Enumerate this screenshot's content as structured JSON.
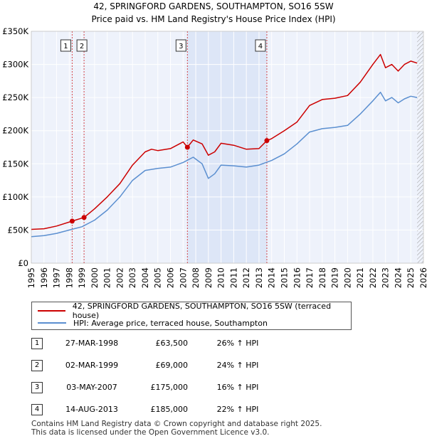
{
  "header": {
    "title_line1": "42, SPRINGFORD GARDENS, SOUTHAMPTON, SO16 5SW",
    "title_line2": "Price paid vs. HM Land Registry's House Price Index (HPI)"
  },
  "chart_data": {
    "type": "line",
    "title": "42, SPRINGFORD GARDENS, SOUTHAMPTON, SO16 5SW — Price paid vs. HM Land Registry's House Price Index (HPI)",
    "xlabel": "",
    "ylabel": "",
    "xlim": [
      1995,
      2026
    ],
    "ylim": [
      0,
      350000
    ],
    "y_ticks": [
      0,
      50000,
      100000,
      150000,
      200000,
      250000,
      300000,
      350000
    ],
    "y_tick_labels": [
      "£0",
      "£50K",
      "£100K",
      "£150K",
      "£200K",
      "£250K",
      "£300K",
      "£350K"
    ],
    "x_ticks": [
      1995,
      1996,
      1997,
      1998,
      1999,
      2000,
      2001,
      2002,
      2003,
      2004,
      2005,
      2006,
      2007,
      2008,
      2009,
      2010,
      2011,
      2012,
      2013,
      2014,
      2015,
      2016,
      2017,
      2018,
      2019,
      2020,
      2021,
      2022,
      2023,
      2024,
      2025,
      2026
    ],
    "grid": true,
    "shaded_range": [
      2007.34,
      2013.62
    ],
    "hatched_from": 2025.5,
    "series": [
      {
        "name": "42, SPRINGFORD GARDENS, SOUTHAMPTON, SO16 5SW (terraced house)",
        "color": "#cc0000",
        "points": [
          [
            1995,
            51000
          ],
          [
            1996,
            52000
          ],
          [
            1997,
            56000
          ],
          [
            1998.23,
            63500
          ],
          [
            1999.17,
            69000
          ],
          [
            2000,
            82000
          ],
          [
            2001,
            100000
          ],
          [
            2002,
            120000
          ],
          [
            2003,
            148000
          ],
          [
            2004,
            168000
          ],
          [
            2004.5,
            172000
          ],
          [
            2005,
            170000
          ],
          [
            2006,
            173000
          ],
          [
            2007,
            183000
          ],
          [
            2007.34,
            175000
          ],
          [
            2007.8,
            186000
          ],
          [
            2008.5,
            180000
          ],
          [
            2009.0,
            163000
          ],
          [
            2009.5,
            168000
          ],
          [
            2010,
            181000
          ],
          [
            2011,
            178000
          ],
          [
            2012,
            172000
          ],
          [
            2013,
            173000
          ],
          [
            2013.62,
            185000
          ],
          [
            2014,
            188000
          ],
          [
            2015,
            200000
          ],
          [
            2016,
            213000
          ],
          [
            2017,
            238000
          ],
          [
            2018,
            247000
          ],
          [
            2019,
            249000
          ],
          [
            2020,
            253000
          ],
          [
            2021,
            273000
          ],
          [
            2022,
            300000
          ],
          [
            2022.6,
            315000
          ],
          [
            2023,
            295000
          ],
          [
            2023.5,
            300000
          ],
          [
            2024,
            290000
          ],
          [
            2024.5,
            300000
          ],
          [
            2025,
            305000
          ],
          [
            2025.5,
            302000
          ]
        ]
      },
      {
        "name": "HPI: Average price, terraced house, Southampton",
        "color": "#5b8fd0",
        "points": [
          [
            1995,
            40000
          ],
          [
            1996,
            41500
          ],
          [
            1997,
            45000
          ],
          [
            1998,
            50000
          ],
          [
            1999,
            55000
          ],
          [
            2000,
            65000
          ],
          [
            2001,
            80000
          ],
          [
            2002,
            100000
          ],
          [
            2003,
            125000
          ],
          [
            2004,
            140000
          ],
          [
            2005,
            143000
          ],
          [
            2006,
            145000
          ],
          [
            2007,
            152000
          ],
          [
            2007.8,
            160000
          ],
          [
            2008.5,
            150000
          ],
          [
            2009,
            128000
          ],
          [
            2009.5,
            135000
          ],
          [
            2010,
            148000
          ],
          [
            2011,
            147000
          ],
          [
            2012,
            145000
          ],
          [
            2013,
            148000
          ],
          [
            2014,
            155000
          ],
          [
            2015,
            165000
          ],
          [
            2016,
            180000
          ],
          [
            2017,
            198000
          ],
          [
            2018,
            203000
          ],
          [
            2019,
            205000
          ],
          [
            2020,
            208000
          ],
          [
            2021,
            225000
          ],
          [
            2022,
            245000
          ],
          [
            2022.6,
            258000
          ],
          [
            2023,
            245000
          ],
          [
            2023.5,
            250000
          ],
          [
            2024,
            242000
          ],
          [
            2024.5,
            248000
          ],
          [
            2025,
            252000
          ],
          [
            2025.5,
            250000
          ]
        ]
      }
    ],
    "markers": [
      {
        "label": "1",
        "year": 1998.23,
        "value": 63500
      },
      {
        "label": "2",
        "year": 1999.17,
        "value": 69000
      },
      {
        "label": "3",
        "year": 2007.34,
        "value": 175000
      },
      {
        "label": "4",
        "year": 2013.62,
        "value": 185000
      }
    ]
  },
  "legend": {
    "price_paid": "42, SPRINGFORD GARDENS, SOUTHAMPTON, SO16 5SW (terraced house)",
    "hpi": "HPI: Average price, terraced house, Southampton",
    "price_paid_color": "#cc0000",
    "hpi_color": "#5b8fd0"
  },
  "transactions": [
    {
      "num": "1",
      "date": "27-MAR-1998",
      "price": "£63,500",
      "hpi": "26% ↑ HPI"
    },
    {
      "num": "2",
      "date": "02-MAR-1999",
      "price": "£69,000",
      "hpi": "24% ↑ HPI"
    },
    {
      "num": "3",
      "date": "03-MAY-2007",
      "price": "£175,000",
      "hpi": "16% ↑ HPI"
    },
    {
      "num": "4",
      "date": "14-AUG-2013",
      "price": "£185,000",
      "hpi": "22% ↑ HPI"
    }
  ],
  "footer": {
    "line1": "Contains HM Land Registry data © Crown copyright and database right 2025.",
    "line2": "This data is licensed under the Open Government Licence v3.0."
  }
}
